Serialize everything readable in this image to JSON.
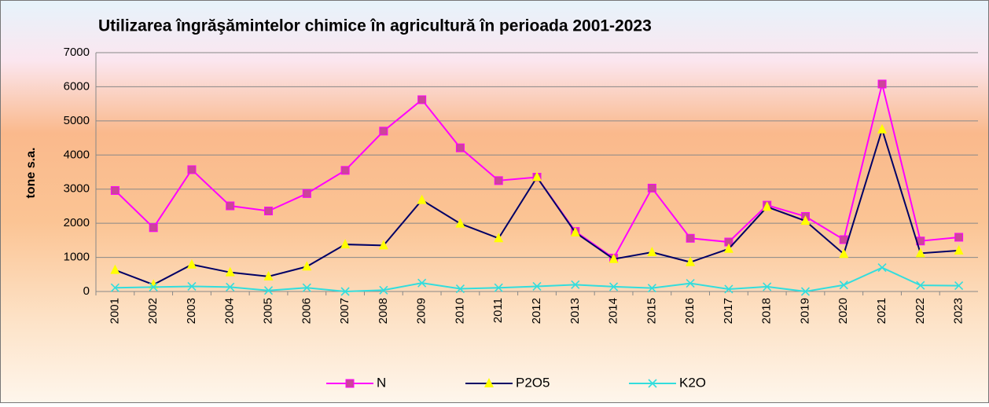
{
  "chart_data": {
    "type": "line",
    "title": "Utilizarea îngrăşămintelor chimice în agricultură în perioada 2001-2023",
    "y_label": "tone s.a.",
    "categories": [
      "2001",
      "2002",
      "2003",
      "2004",
      "2005",
      "2006",
      "2007",
      "2008",
      "2009",
      "2010",
      "2011",
      "2012",
      "2013",
      "2014",
      "2015",
      "2016",
      "2017",
      "2018",
      "2019",
      "2020",
      "2021",
      "2022",
      "2023"
    ],
    "series": [
      {
        "name": "N",
        "color": "#ff00ff",
        "marker": "square",
        "marker_color": "#cc4499",
        "values": [
          2960,
          1870,
          3570,
          2510,
          2360,
          2870,
          3550,
          4700,
          5620,
          4210,
          3250,
          3350,
          1760,
          980,
          3030,
          1560,
          1450,
          2530,
          2200,
          1520,
          6080,
          1480,
          1590
        ]
      },
      {
        "name": "P2O5",
        "color": "#000066",
        "marker": "triangle",
        "marker_color": "#ffff00",
        "values": [
          630,
          200,
          790,
          560,
          440,
          730,
          1380,
          1350,
          2680,
          1990,
          1560,
          3350,
          1730,
          950,
          1150,
          860,
          1250,
          2480,
          2070,
          1100,
          4750,
          1120,
          1200
        ]
      },
      {
        "name": "K2O",
        "color": "#33dddd",
        "marker": "x",
        "marker_color": "#33dddd",
        "values": [
          110,
          130,
          150,
          130,
          30,
          110,
          0,
          40,
          250,
          80,
          110,
          150,
          200,
          140,
          100,
          240,
          70,
          140,
          0,
          190,
          700,
          180,
          170
        ]
      }
    ],
    "ylim": [
      0,
      7000
    ],
    "yticks": [
      0,
      1000,
      2000,
      3000,
      4000,
      5000,
      6000,
      7000
    ],
    "grid": true,
    "legend": "bottom"
  }
}
